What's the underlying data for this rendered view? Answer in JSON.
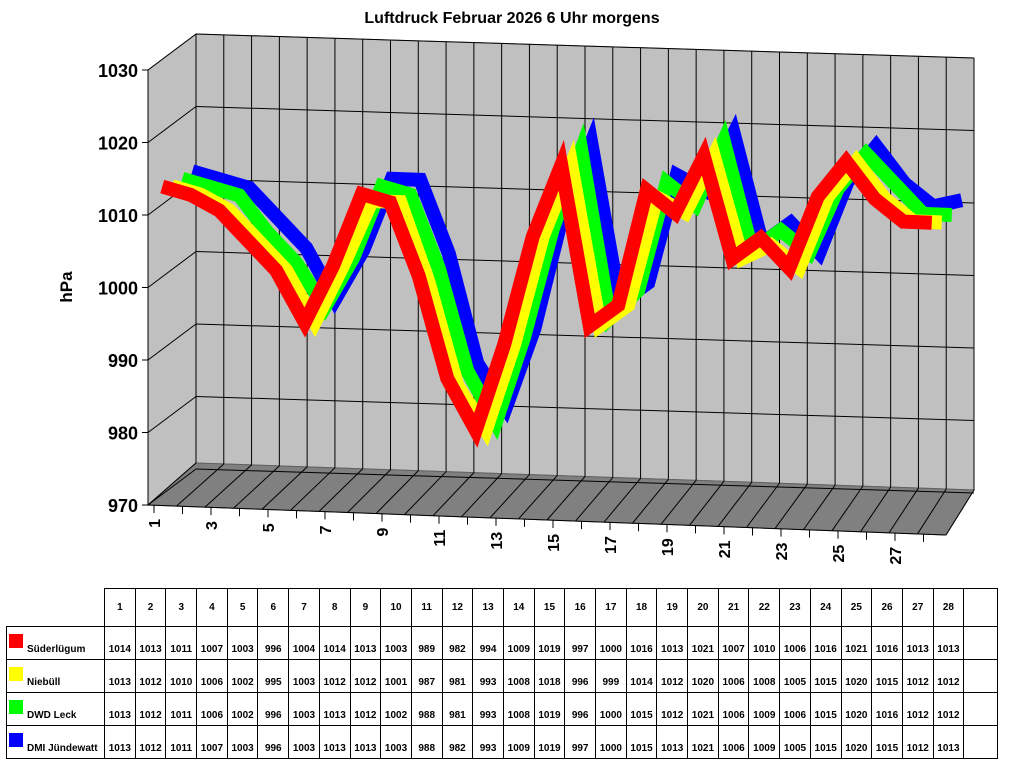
{
  "chart_data": {
    "type": "line",
    "style": "3d-ribbon",
    "title": "Luftdruck Februar 2026 6 Uhr morgens",
    "xlabel": "",
    "ylabel": "hPa",
    "ylim": [
      970,
      1030
    ],
    "yticks": [
      970,
      980,
      990,
      1000,
      1010,
      1020,
      1030
    ],
    "x_tick_labels": [
      "1",
      "3",
      "5",
      "7",
      "9",
      "11",
      "13",
      "15",
      "17",
      "19",
      "21",
      "23",
      "25",
      "27"
    ],
    "grid": true,
    "categories": [
      "1",
      "2",
      "3",
      "4",
      "5",
      "6",
      "7",
      "8",
      "9",
      "10",
      "11",
      "12",
      "13",
      "14",
      "15",
      "16",
      "17",
      "18",
      "19",
      "20",
      "21",
      "22",
      "23",
      "24",
      "25",
      "26",
      "27",
      "28"
    ],
    "series": [
      {
        "name": "Süderlügum",
        "color": "#ff0000",
        "values": [
          1014,
          1013,
          1011,
          1007,
          1003,
          996,
          1004,
          1014,
          1013,
          1003,
          989,
          982,
          994,
          1009,
          1019,
          997,
          1000,
          1016,
          1013,
          1021,
          1007,
          1010,
          1006,
          1016,
          1021,
          1016,
          1013,
          1013
        ]
      },
      {
        "name": "Niebüll",
        "color": "#ffff00",
        "values": [
          1013,
          1012,
          1010,
          1006,
          1002,
          995,
          1003,
          1012,
          1012,
          1001,
          987,
          981,
          993,
          1008,
          1018,
          996,
          999,
          1014,
          1012,
          1020,
          1006,
          1008,
          1005,
          1015,
          1020,
          1015,
          1012,
          1012
        ]
      },
      {
        "name": "DWD Leck",
        "color": "#00ff00",
        "values": [
          1013,
          1012,
          1011,
          1006,
          1002,
          996,
          1003,
          1013,
          1012,
          1002,
          988,
          981,
          993,
          1008,
          1019,
          996,
          1000,
          1015,
          1012,
          1021,
          1006,
          1009,
          1006,
          1015,
          1020,
          1016,
          1012,
          1012
        ]
      },
      {
        "name": "DMI Jündewatt",
        "color": "#0000ff",
        "values": [
          1013,
          1012,
          1011,
          1007,
          1003,
          996,
          1003,
          1013,
          1013,
          1003,
          988,
          982,
          993,
          1009,
          1019,
          997,
          1000,
          1015,
          1013,
          1021,
          1006,
          1009,
          1005,
          1015,
          1020,
          1015,
          1012,
          1013
        ]
      }
    ],
    "legend_position": "table-below"
  },
  "table": {
    "columns": [
      "1",
      "2",
      "3",
      "4",
      "5",
      "6",
      "7",
      "8",
      "9",
      "10",
      "11",
      "12",
      "13",
      "14",
      "15",
      "16",
      "17",
      "18",
      "19",
      "20",
      "21",
      "22",
      "23",
      "24",
      "25",
      "26",
      "27",
      "28"
    ]
  },
  "colors": {
    "wall": "#c0c0c0",
    "floor": "#808080"
  }
}
